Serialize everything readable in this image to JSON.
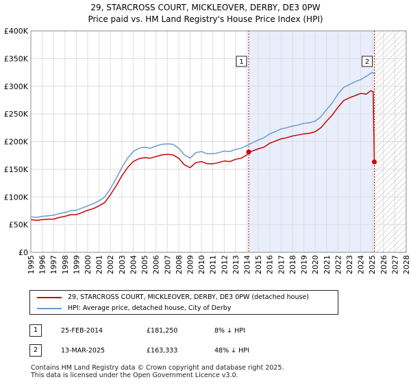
{
  "title_line1": "29, STARCROSS COURT, MICKLEOVER, DERBY, DE3 0PW",
  "title_line2": "Price paid vs. HM Land Registry's House Price Index (HPI)",
  "colors": {
    "property": "#cc0000",
    "hpi": "#6b99cc",
    "shade": "#e8eefb",
    "grid": "#dddddd",
    "marker_line": "#cc0000"
  },
  "legend": {
    "property_label": "29, STARCROSS COURT, MICKLEOVER, DERBY, DE3 0PW (detached house)",
    "hpi_label": "HPI: Average price, detached house, City of Derby"
  },
  "transactions": [
    {
      "id": "1",
      "date": "25-FEB-2014",
      "price": "£181,250",
      "hpi_diff": "8% ↓ HPI"
    },
    {
      "id": "2",
      "date": "13-MAR-2025",
      "price": "£163,333",
      "hpi_diff": "48% ↓ HPI"
    }
  ],
  "footer": {
    "line1": "Contains HM Land Registry data © Crown copyright and database right 2025.",
    "line2": "This data is licensed under the Open Government Licence v3.0."
  },
  "chart_data": {
    "type": "line",
    "title": "29, STARCROSS COURT, MICKLEOVER, DERBY, DE3 0PW — Price paid vs. HM Land Registry's House Price Index (HPI)",
    "xlabel": "",
    "ylabel": "",
    "xlim": [
      1995,
      2028
    ],
    "ylim": [
      0,
      400000
    ],
    "y_ticks": [
      0,
      50000,
      100000,
      150000,
      200000,
      250000,
      300000,
      350000,
      400000
    ],
    "y_tick_labels": [
      "£0",
      "£50K",
      "£100K",
      "£150K",
      "£200K",
      "£250K",
      "£300K",
      "£350K",
      "£400K"
    ],
    "x_ticks": [
      1995,
      1996,
      1997,
      1998,
      1999,
      2000,
      2001,
      2002,
      2003,
      2004,
      2005,
      2006,
      2007,
      2008,
      2009,
      2010,
      2011,
      2012,
      2013,
      2014,
      2015,
      2016,
      2017,
      2018,
      2019,
      2020,
      2021,
      2022,
      2023,
      2024,
      2025,
      2026,
      2027,
      2028
    ],
    "grid": true,
    "sale_period_start": 2014.15,
    "sale_period_end": 2025.2,
    "future_hatch_start": 2025.25,
    "series": [
      {
        "name": "HPI: Average price, detached house, City of Derby",
        "x": [
          1995,
          1995.5,
          1996,
          1996.5,
          1997,
          1997.5,
          1998,
          1998.5,
          1999,
          1999.5,
          2000,
          2000.5,
          2001,
          2001.5,
          2002,
          2002.5,
          2003,
          2003.5,
          2004,
          2004.5,
          2005,
          2005.5,
          2006,
          2006.5,
          2007,
          2007.5,
          2008,
          2008.5,
          2009,
          2009.5,
          2010,
          2010.5,
          2011,
          2011.5,
          2012,
          2012.5,
          2013,
          2013.5,
          2014,
          2014.5,
          2015,
          2015.5,
          2016,
          2016.5,
          2017,
          2017.5,
          2018,
          2018.5,
          2019,
          2019.5,
          2020,
          2020.5,
          2021,
          2021.5,
          2022,
          2022.5,
          2023,
          2023.5,
          2024,
          2024.5,
          2025,
          2025.3
        ],
        "values": [
          64000,
          63000,
          65000,
          66000,
          67000,
          70000,
          72000,
          75000,
          76000,
          80000,
          84000,
          88000,
          93000,
          100000,
          115000,
          133000,
          153000,
          170000,
          182000,
          188000,
          190000,
          188000,
          192000,
          195000,
          196000,
          195000,
          188000,
          176000,
          170000,
          180000,
          182000,
          178000,
          178000,
          180000,
          183000,
          182000,
          186000,
          188000,
          193000,
          198000,
          203000,
          207000,
          214000,
          218000,
          223000,
          225000,
          228000,
          230000,
          233000,
          234000,
          237000,
          245000,
          258000,
          270000,
          286000,
          298000,
          303000,
          308000,
          312000,
          318000,
          325000,
          322000
        ]
      },
      {
        "name": "29, STARCROSS COURT, MICKLEOVER, DERBY, DE3 0PW (detached house)",
        "x": [
          1995,
          1995.5,
          1996,
          1996.5,
          1997,
          1997.5,
          1998,
          1998.5,
          1999,
          1999.5,
          2000,
          2000.5,
          2001,
          2001.5,
          2002,
          2002.5,
          2003,
          2003.5,
          2004,
          2004.5,
          2005,
          2005.5,
          2006,
          2006.5,
          2007,
          2007.5,
          2008,
          2008.5,
          2009,
          2009.5,
          2010,
          2010.5,
          2011,
          2011.5,
          2012,
          2012.5,
          2013,
          2013.5,
          2014,
          2014.15,
          2014.5,
          2015,
          2015.5,
          2016,
          2016.5,
          2017,
          2017.5,
          2018,
          2018.5,
          2019,
          2019.5,
          2020,
          2020.5,
          2021,
          2021.5,
          2022,
          2022.5,
          2023,
          2023.5,
          2024,
          2024.5,
          2024.9,
          2025.1,
          2025.2
        ],
        "values": [
          59000,
          58000,
          59000,
          60000,
          60000,
          63000,
          65000,
          68000,
          68000,
          72000,
          76000,
          79000,
          84000,
          90000,
          104000,
          120000,
          138000,
          153000,
          164000,
          169000,
          171000,
          170000,
          173000,
          176000,
          177000,
          176000,
          170000,
          158000,
          153000,
          162000,
          164000,
          160000,
          160000,
          162000,
          165000,
          164000,
          168000,
          170000,
          176000,
          181250,
          183000,
          187000,
          190000,
          197000,
          201000,
          205000,
          207000,
          210000,
          212000,
          214000,
          215000,
          218000,
          225000,
          237000,
          248000,
          262000,
          274000,
          279000,
          283000,
          287000,
          286000,
          292000,
          290000,
          163333
        ]
      }
    ],
    "annotations": [
      {
        "label": "1",
        "x": 2014.15,
        "y": 181250
      },
      {
        "label": "2",
        "x": 2025.2,
        "y": 163333
      }
    ]
  }
}
